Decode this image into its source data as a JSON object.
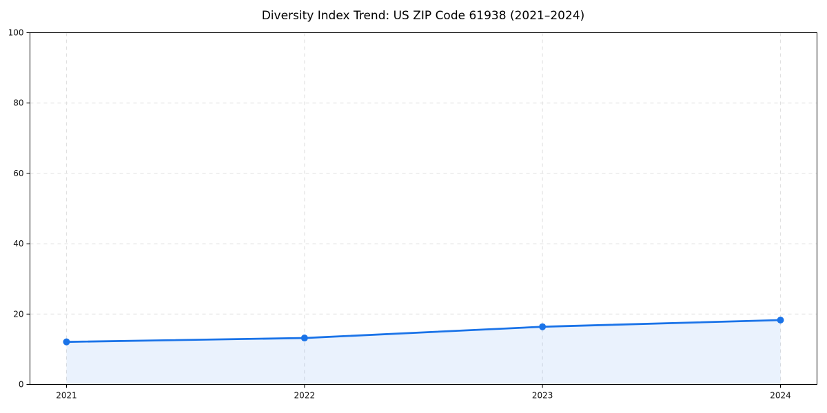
{
  "page": {
    "background_color": "#ffffff"
  },
  "chart_data": {
    "type": "line",
    "title": "Diversity Index Trend: US ZIP Code 61938 (2021–2024)",
    "categories": [
      "2021",
      "2022",
      "2023",
      "2024"
    ],
    "series": [
      {
        "name": "Diversity Index",
        "values": [
          12.1,
          13.2,
          16.4,
          18.3
        ]
      }
    ],
    "xlabel": "",
    "ylabel": "",
    "ylim": [
      0,
      100
    ],
    "yticks": [
      0,
      20,
      40,
      60,
      80,
      100
    ],
    "grid": true,
    "grid_style": "dashed",
    "legend_position": "none",
    "marker": "circle",
    "area_fill": true,
    "colors": {
      "line": "#1a73e8",
      "marker": "#1a73e8",
      "fill": "#1a73e8",
      "fill_opacity": 0.09,
      "grid": "#e0e0e0",
      "spine": "#000000",
      "tick_label": "#111111",
      "title": "#000000"
    }
  }
}
